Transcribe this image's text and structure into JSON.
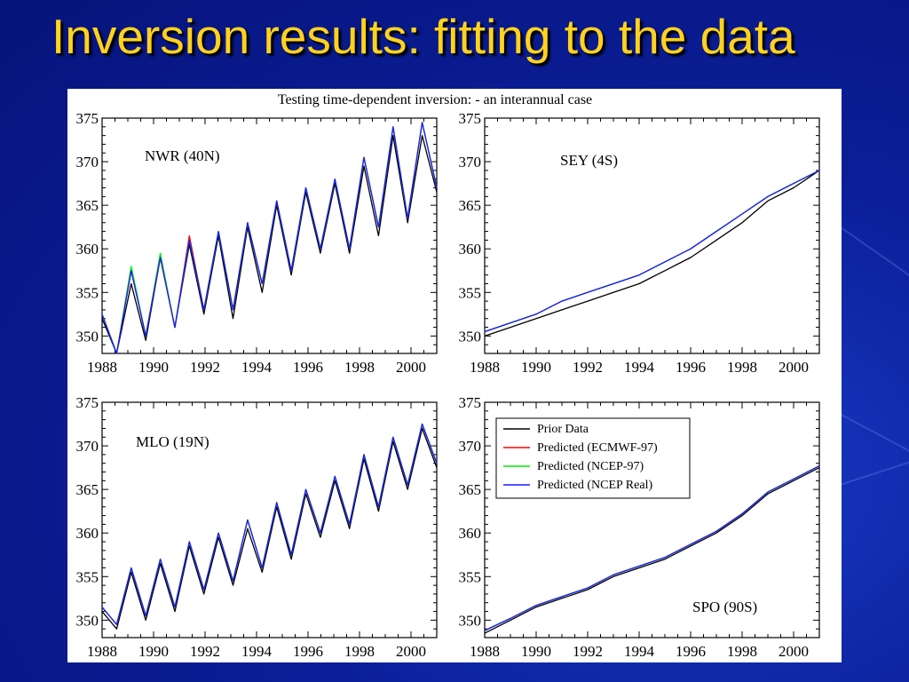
{
  "slide": {
    "title": "Inversion results: fitting to the data"
  },
  "figure": {
    "title": "Testing time-dependent inversion: - an interannual case"
  },
  "colors": {
    "prior": "#000000",
    "ecmwf": "#ff0000",
    "ncep97": "#00ee00",
    "ncep_real": "#1a1aff",
    "title_text": "#ffd21e"
  },
  "chart_data": [
    {
      "type": "line",
      "station": "NWR (40N)",
      "xlim": [
        1988,
        2001
      ],
      "ylim": [
        348,
        375
      ],
      "xticks": [
        1988,
        1990,
        1992,
        1994,
        1996,
        1998,
        2000
      ],
      "yticks": [
        350,
        355,
        360,
        365,
        370,
        375
      ],
      "trend": {
        "start": 352.0,
        "end": 370.0
      },
      "seasonal_amplitude": 4.8,
      "series": [
        {
          "name": "Prior Data",
          "values": [
            352.0,
            348.0,
            356.0,
            349.5,
            359.0,
            351.0,
            360.5,
            352.5,
            361.5,
            352.0,
            362.5,
            355.0,
            365.0,
            357.0,
            366.5,
            359.5,
            367.5,
            359.5,
            369.5,
            361.5,
            373.0,
            363.0,
            373.0,
            366.5
          ]
        },
        {
          "name": "Predicted (ECMWF-97)",
          "values": [
            352.5,
            348.0,
            357.5,
            350.0,
            359.0,
            351.0,
            361.5,
            353.0,
            362.0,
            353.0,
            363.0,
            356.0,
            365.5,
            357.5,
            367.0,
            360.0,
            368.0,
            360.0,
            370.5,
            362.5,
            374.0,
            363.5,
            374.5,
            367.0
          ]
        },
        {
          "name": "Predicted (NCEP-97)",
          "values": [
            352.5,
            348.0,
            358.0,
            350.0,
            359.5,
            351.0,
            361.0,
            353.0,
            362.0,
            353.0,
            363.0,
            356.0,
            365.5,
            357.5,
            367.0,
            360.0,
            368.0,
            360.0,
            370.5,
            362.5,
            374.0,
            363.5,
            374.5,
            367.0
          ]
        },
        {
          "name": "Predicted (NCEP Real)",
          "values": [
            352.5,
            348.0,
            357.5,
            350.0,
            359.0,
            351.0,
            361.0,
            353.0,
            362.0,
            353.0,
            363.0,
            356.0,
            365.5,
            357.5,
            367.0,
            360.0,
            368.0,
            360.0,
            370.5,
            362.5,
            374.0,
            363.5,
            374.5,
            367.0
          ]
        }
      ]
    },
    {
      "type": "line",
      "station": "SEY (4S)",
      "xlim": [
        1988,
        2001
      ],
      "ylim": [
        348,
        375
      ],
      "xticks": [
        1988,
        1990,
        1992,
        1994,
        1996,
        1998,
        2000
      ],
      "yticks": [
        350,
        355,
        360,
        365,
        370,
        375
      ],
      "trend": {
        "start": 350.0,
        "end": 369.0
      },
      "seasonal_amplitude": 1.8,
      "series": [
        {
          "name": "Prior Data",
          "values": [
            350.0,
            351.0,
            352.0,
            353.0,
            354.0,
            355.0,
            356.0,
            357.5,
            359.0,
            361.0,
            363.0,
            365.5,
            367.0,
            369.0
          ]
        },
        {
          "name": "Predicted (ECMWF-97)",
          "values": [
            350.5,
            351.5,
            352.5,
            354.0,
            355.0,
            356.0,
            357.0,
            358.5,
            360.0,
            362.0,
            364.0,
            366.0,
            367.5,
            369.0
          ]
        },
        {
          "name": "Predicted (NCEP-97)",
          "values": [
            350.5,
            351.5,
            352.5,
            354.0,
            355.0,
            356.0,
            357.0,
            358.5,
            360.0,
            362.0,
            364.0,
            366.0,
            367.5,
            369.0
          ]
        },
        {
          "name": "Predicted (NCEP Real)",
          "values": [
            350.5,
            351.5,
            352.5,
            354.0,
            355.0,
            356.0,
            357.0,
            358.5,
            360.0,
            362.0,
            364.0,
            366.0,
            367.5,
            369.0
          ]
        }
      ]
    },
    {
      "type": "line",
      "station": "MLO (19N)",
      "xlim": [
        1988,
        2001
      ],
      "ylim": [
        348,
        375
      ],
      "xticks": [
        1988,
        1990,
        1992,
        1994,
        1996,
        1998,
        2000
      ],
      "yticks": [
        350,
        355,
        360,
        365,
        370,
        375
      ],
      "trend": {
        "start": 351.0,
        "end": 369.0
      },
      "seasonal_amplitude": 3.2,
      "series": [
        {
          "name": "Prior Data",
          "values": [
            351.0,
            349.0,
            355.5,
            350.0,
            356.5,
            351.0,
            358.5,
            353.0,
            359.5,
            354.0,
            360.5,
            355.5,
            363.0,
            357.0,
            364.5,
            359.5,
            366.0,
            360.5,
            368.5,
            362.5,
            370.5,
            365.0,
            372.0,
            367.5
          ]
        },
        {
          "name": "Predicted (ECMWF-97)",
          "values": [
            351.5,
            349.5,
            356.0,
            350.5,
            357.0,
            351.5,
            359.0,
            353.5,
            360.0,
            354.5,
            361.5,
            356.0,
            363.5,
            357.5,
            365.0,
            360.0,
            366.5,
            361.0,
            369.0,
            363.0,
            371.0,
            365.5,
            372.5,
            368.0
          ]
        },
        {
          "name": "Predicted (NCEP-97)",
          "values": [
            351.5,
            349.5,
            356.0,
            350.5,
            357.0,
            351.5,
            359.0,
            353.5,
            360.0,
            354.5,
            361.5,
            356.0,
            363.5,
            357.5,
            365.0,
            360.0,
            366.5,
            361.0,
            369.0,
            363.0,
            371.0,
            365.5,
            372.5,
            368.0
          ]
        },
        {
          "name": "Predicted (NCEP Real)",
          "values": [
            351.5,
            349.5,
            356.0,
            350.5,
            357.0,
            351.5,
            359.0,
            353.5,
            360.0,
            354.5,
            361.5,
            356.0,
            363.5,
            357.5,
            365.0,
            360.0,
            366.5,
            361.0,
            369.0,
            363.0,
            371.0,
            365.5,
            372.5,
            368.0
          ]
        }
      ]
    },
    {
      "type": "line",
      "station": "SPO (90S)",
      "xlim": [
        1988,
        2001
      ],
      "ylim": [
        348,
        375
      ],
      "xticks": [
        1988,
        1990,
        1992,
        1994,
        1996,
        1998,
        2000
      ],
      "yticks": [
        350,
        355,
        360,
        365,
        370,
        375
      ],
      "trend": {
        "start": 348.5,
        "end": 367.5
      },
      "seasonal_amplitude": 0.6,
      "series": [
        {
          "name": "Prior Data",
          "values": [
            348.5,
            350.0,
            351.5,
            352.5,
            353.5,
            355.0,
            356.0,
            357.0,
            358.5,
            360.0,
            362.0,
            364.5,
            366.0,
            367.5
          ]
        },
        {
          "name": "Predicted (ECMWF-97)",
          "values": [
            348.8,
            350.2,
            351.7,
            352.7,
            353.7,
            355.2,
            356.2,
            357.2,
            358.7,
            360.2,
            362.2,
            364.7,
            366.2,
            367.7
          ]
        },
        {
          "name": "Predicted (NCEP-97)",
          "values": [
            348.8,
            350.2,
            351.7,
            352.7,
            353.7,
            355.2,
            356.2,
            357.2,
            358.7,
            360.2,
            362.2,
            364.7,
            366.2,
            367.7
          ]
        },
        {
          "name": "Predicted (NCEP Real)",
          "values": [
            348.8,
            350.2,
            351.7,
            352.7,
            353.7,
            355.2,
            356.2,
            357.2,
            358.7,
            360.2,
            362.2,
            364.7,
            366.2,
            367.7
          ]
        }
      ]
    }
  ],
  "legend": {
    "placement": "top-left of SPO panel",
    "items": [
      "Prior Data",
      "Predicted (ECMWF-97)",
      "Predicted (NCEP-97)",
      "Predicted (NCEP Real)"
    ]
  }
}
